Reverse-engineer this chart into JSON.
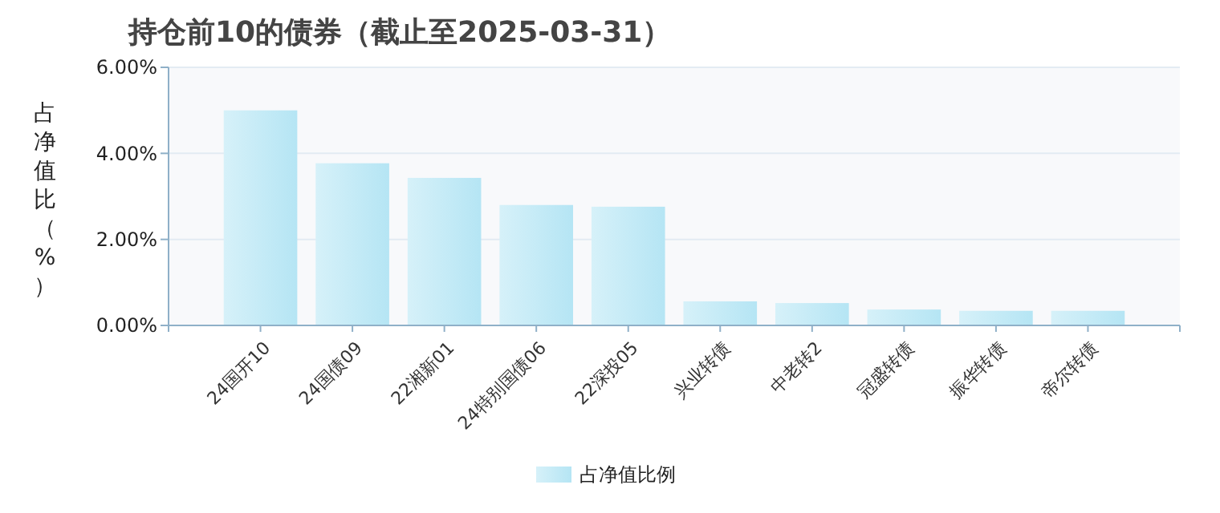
{
  "chart_data": {
    "type": "bar",
    "title": "持仓前10的债券（截止至2025-03-31）",
    "ylabel": "占净值比（%）",
    "categories": [
      "24国开10",
      "24国债09",
      "22湘新01",
      "24特别国债06",
      "22深投05",
      "兴业转债",
      "中老转2",
      "冠盛转债",
      "振华转债",
      "帝尔转债"
    ],
    "series": [
      {
        "name": "占净值比例",
        "color": "#b5e5f4",
        "values": [
          5.0,
          3.77,
          3.43,
          2.8,
          2.76,
          0.56,
          0.52,
          0.37,
          0.34,
          0.34
        ]
      }
    ],
    "ylim": [
      0,
      6
    ],
    "yticks": [
      {
        "value": 0,
        "label": "0.00%"
      },
      {
        "value": 2,
        "label": "2.00%"
      },
      {
        "value": 4,
        "label": "4.00%"
      },
      {
        "value": 6,
        "label": "6.00%"
      }
    ],
    "grid": "y",
    "legend": "bottom"
  }
}
